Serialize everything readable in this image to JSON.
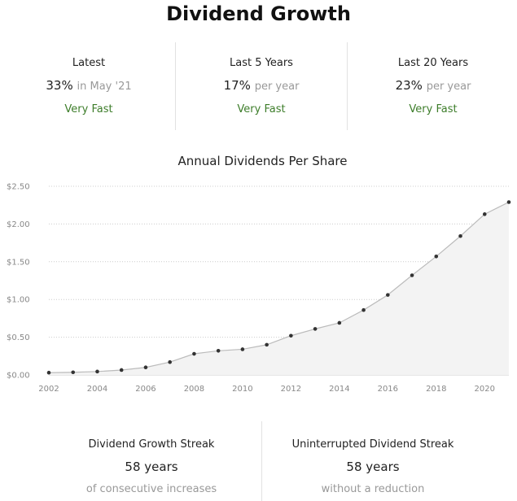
{
  "title": "Dividend Growth",
  "stats": [
    {
      "label": "Latest",
      "value": "33%",
      "suffix": "in May '21",
      "rating": "Very Fast"
    },
    {
      "label": "Last 5 Years",
      "value": "17%",
      "suffix": "per year",
      "rating": "Very Fast"
    },
    {
      "label": "Last 20 Years",
      "value": "23%",
      "suffix": "per year",
      "rating": "Very Fast"
    }
  ],
  "colors": {
    "rating": "#3d7d2a",
    "line": "#bbbbbb",
    "area": "#f3f3f3",
    "point": "#333333",
    "grid": "#cccccc"
  },
  "chart_data": {
    "type": "area",
    "title": "Annual Dividends Per Share",
    "xlabel": "",
    "ylabel": "",
    "x": [
      2002,
      2003,
      2004,
      2005,
      2006,
      2007,
      2008,
      2009,
      2010,
      2011,
      2012,
      2013,
      2014,
      2015,
      2016,
      2017,
      2018,
      2019,
      2020,
      2021
    ],
    "series": [
      {
        "values": [
          0.03,
          0.035,
          0.045,
          0.065,
          0.1,
          0.17,
          0.28,
          0.32,
          0.34,
          0.4,
          0.52,
          0.61,
          0.69,
          0.86,
          1.06,
          1.32,
          1.57,
          1.84,
          2.13,
          2.29
        ]
      }
    ],
    "xlim": [
      2002,
      2021
    ],
    "ylim": [
      0,
      2.5
    ],
    "x_ticks": [
      "2002",
      "2004",
      "2006",
      "2008",
      "2010",
      "2012",
      "2014",
      "2016",
      "2018",
      "2020"
    ],
    "x_tick_values": [
      2002,
      2004,
      2006,
      2008,
      2010,
      2012,
      2014,
      2016,
      2018,
      2020
    ],
    "y_ticks": [
      "$0.00",
      "$0.50",
      "$1.00",
      "$1.50",
      "$2.00",
      "$2.50"
    ],
    "y_tick_values": [
      0,
      0.5,
      1.0,
      1.5,
      2.0,
      2.5
    ],
    "grid": true,
    "legend": "none"
  },
  "streaks": [
    {
      "label": "Dividend Growth Streak",
      "value": "58 years",
      "sub": "of consecutive increases"
    },
    {
      "label": "Uninterrupted Dividend Streak",
      "value": "58 years",
      "sub": "without a reduction"
    }
  ]
}
